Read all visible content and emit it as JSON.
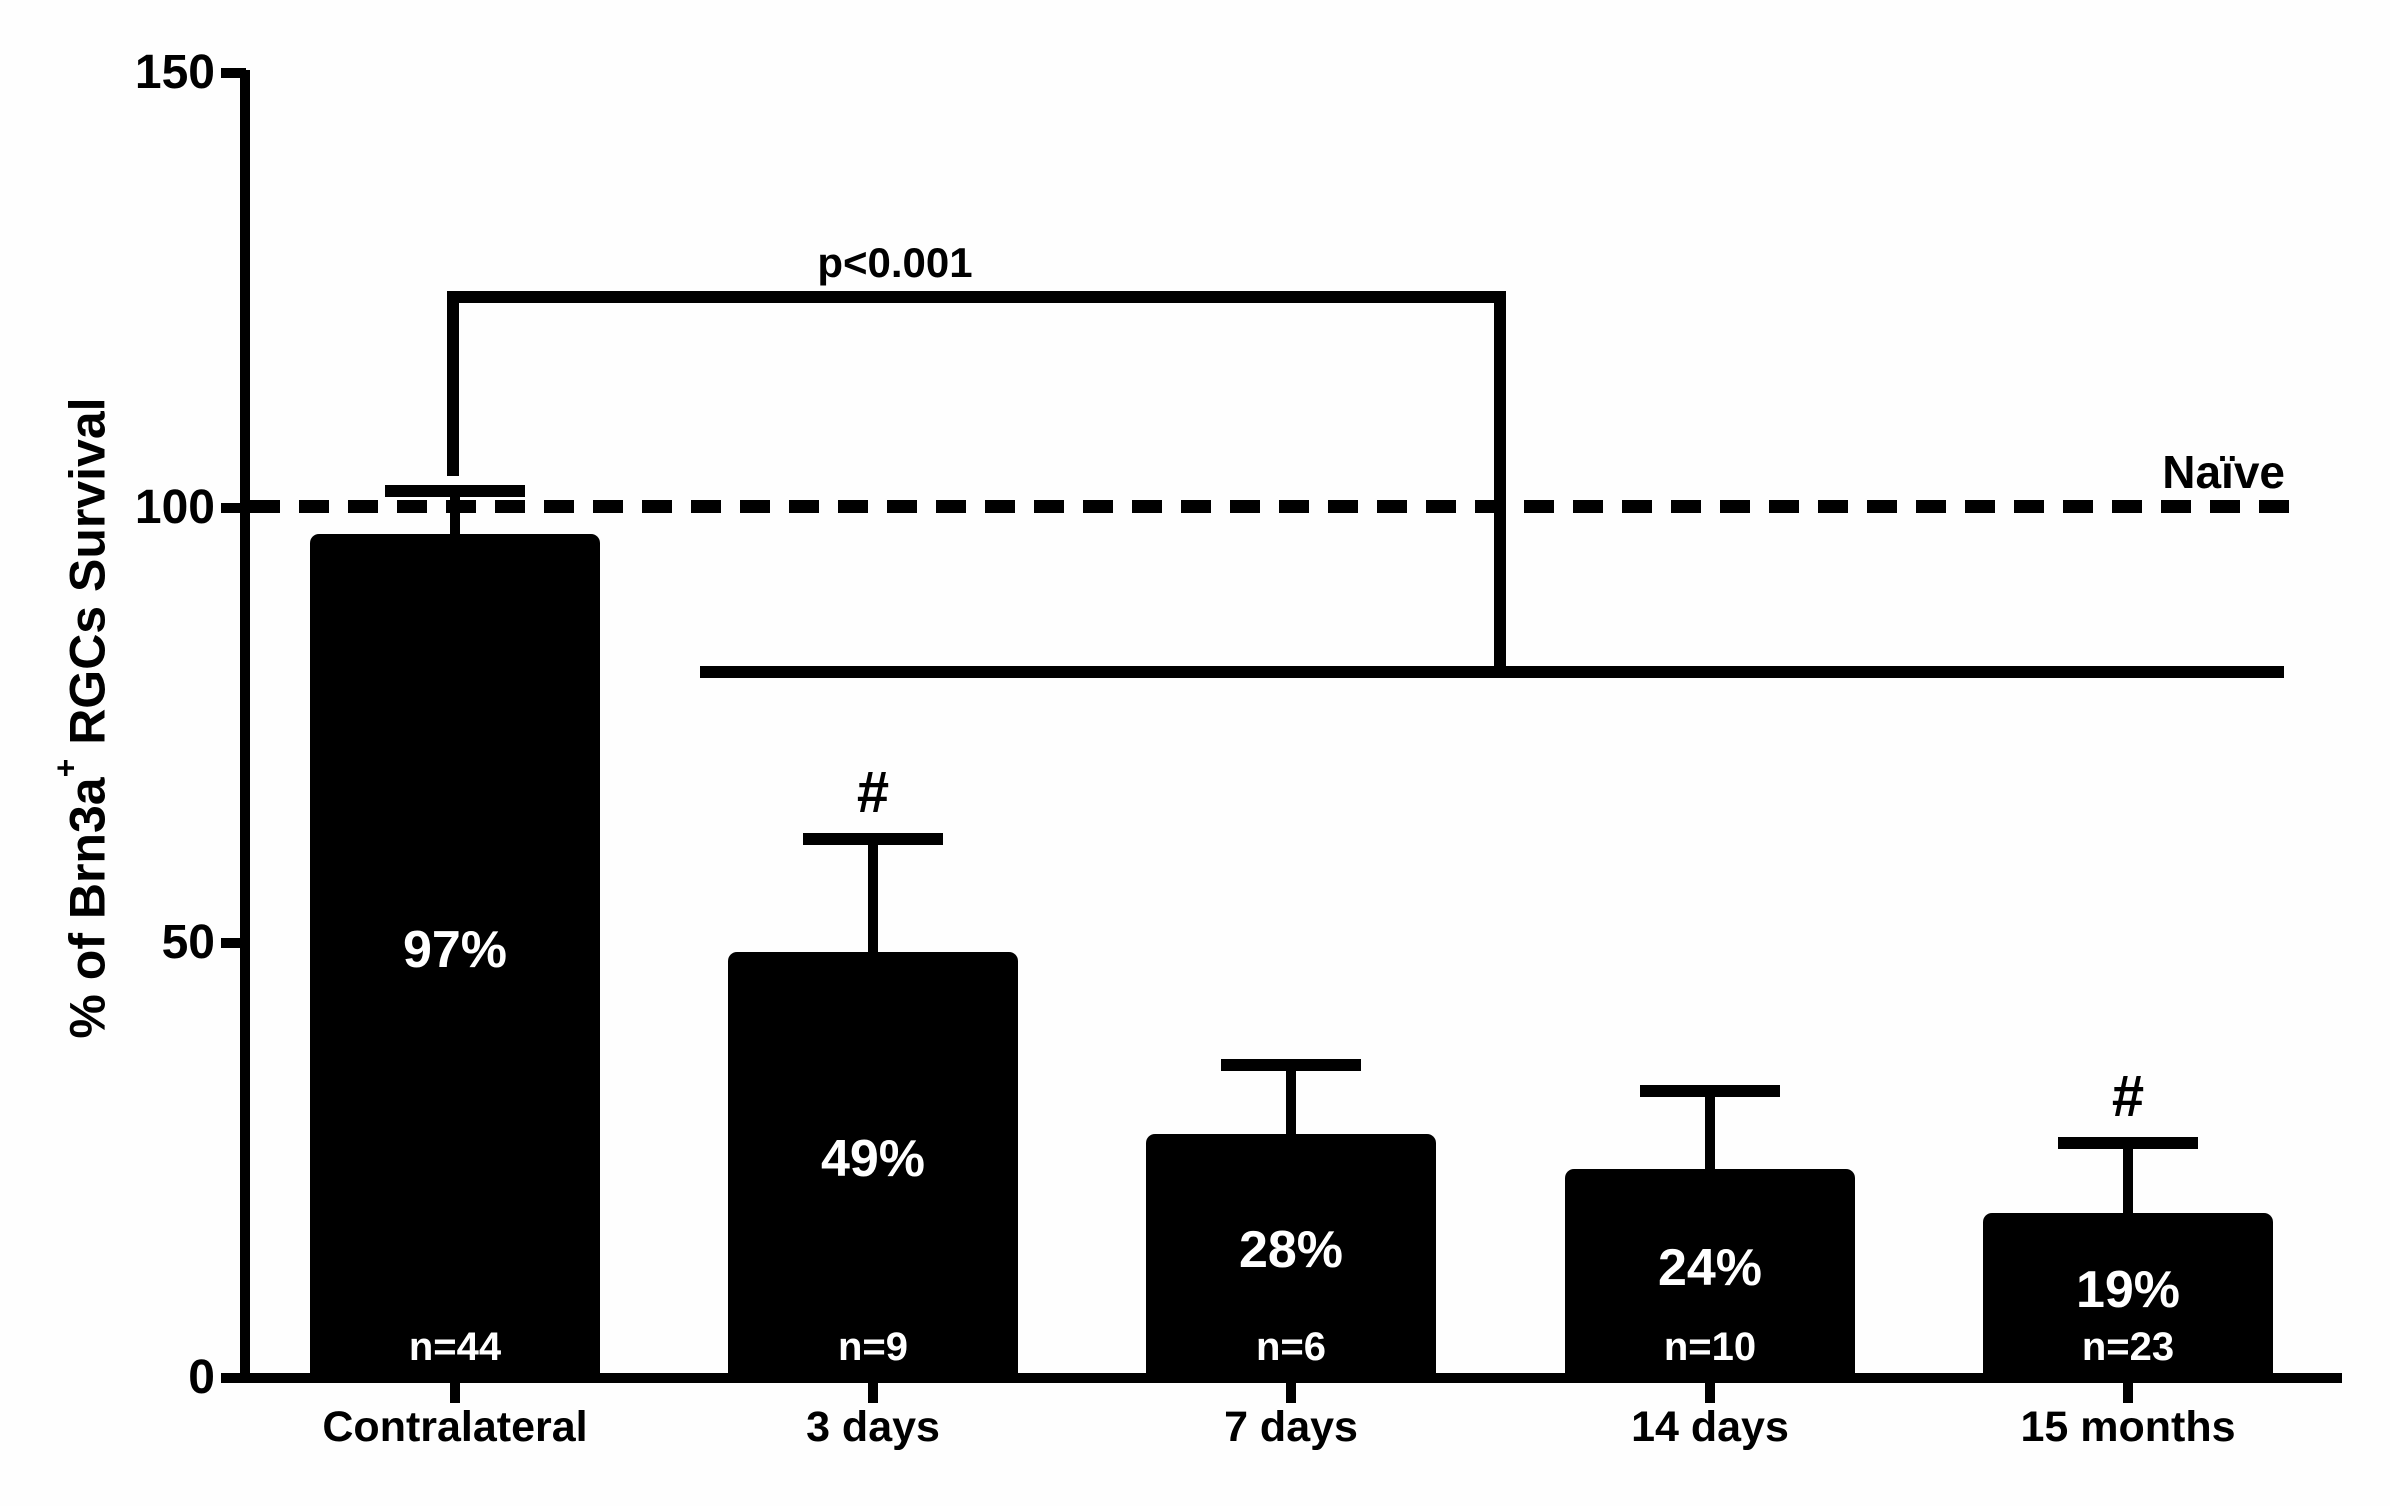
{
  "figure": {
    "p_label": "p<0.001",
    "naive_label": "Naïve",
    "ylabel_prefix": "% of Brn3a",
    "ylabel_sup": "+",
    "ylabel_suffix": " RGCs Survival"
  },
  "chart_data": {
    "type": "bar",
    "title": "",
    "xlabel": "",
    "ylabel": "% of Brn3a+ RGCs Survival",
    "ylim": [
      0,
      150
    ],
    "yticks": [
      0,
      50,
      100,
      150
    ],
    "grid": false,
    "bar_color": "#000000",
    "background": "#ffffff",
    "categories": [
      "Contralateral",
      "3 days",
      "7 days",
      "14 days",
      "15 months"
    ],
    "values": [
      97,
      49,
      28,
      24,
      19
    ],
    "errors_upper": [
      5,
      13,
      8,
      9,
      8
    ],
    "bar_value_labels": [
      "97%",
      "49%",
      "28%",
      "24%",
      "19%"
    ],
    "n_labels": [
      "n=44",
      "n=9",
      "n=6",
      "n=10",
      "n=23"
    ],
    "hash_markers": [
      false,
      true,
      false,
      false,
      true
    ],
    "reference_line": {
      "value": 100,
      "label": "Naïve",
      "style": "dashed"
    },
    "significance_bracket": {
      "label": "p<0.001",
      "compares": "Contralateral",
      "against": [
        "3 days",
        "7 days",
        "14 days",
        "15 months"
      ]
    }
  }
}
